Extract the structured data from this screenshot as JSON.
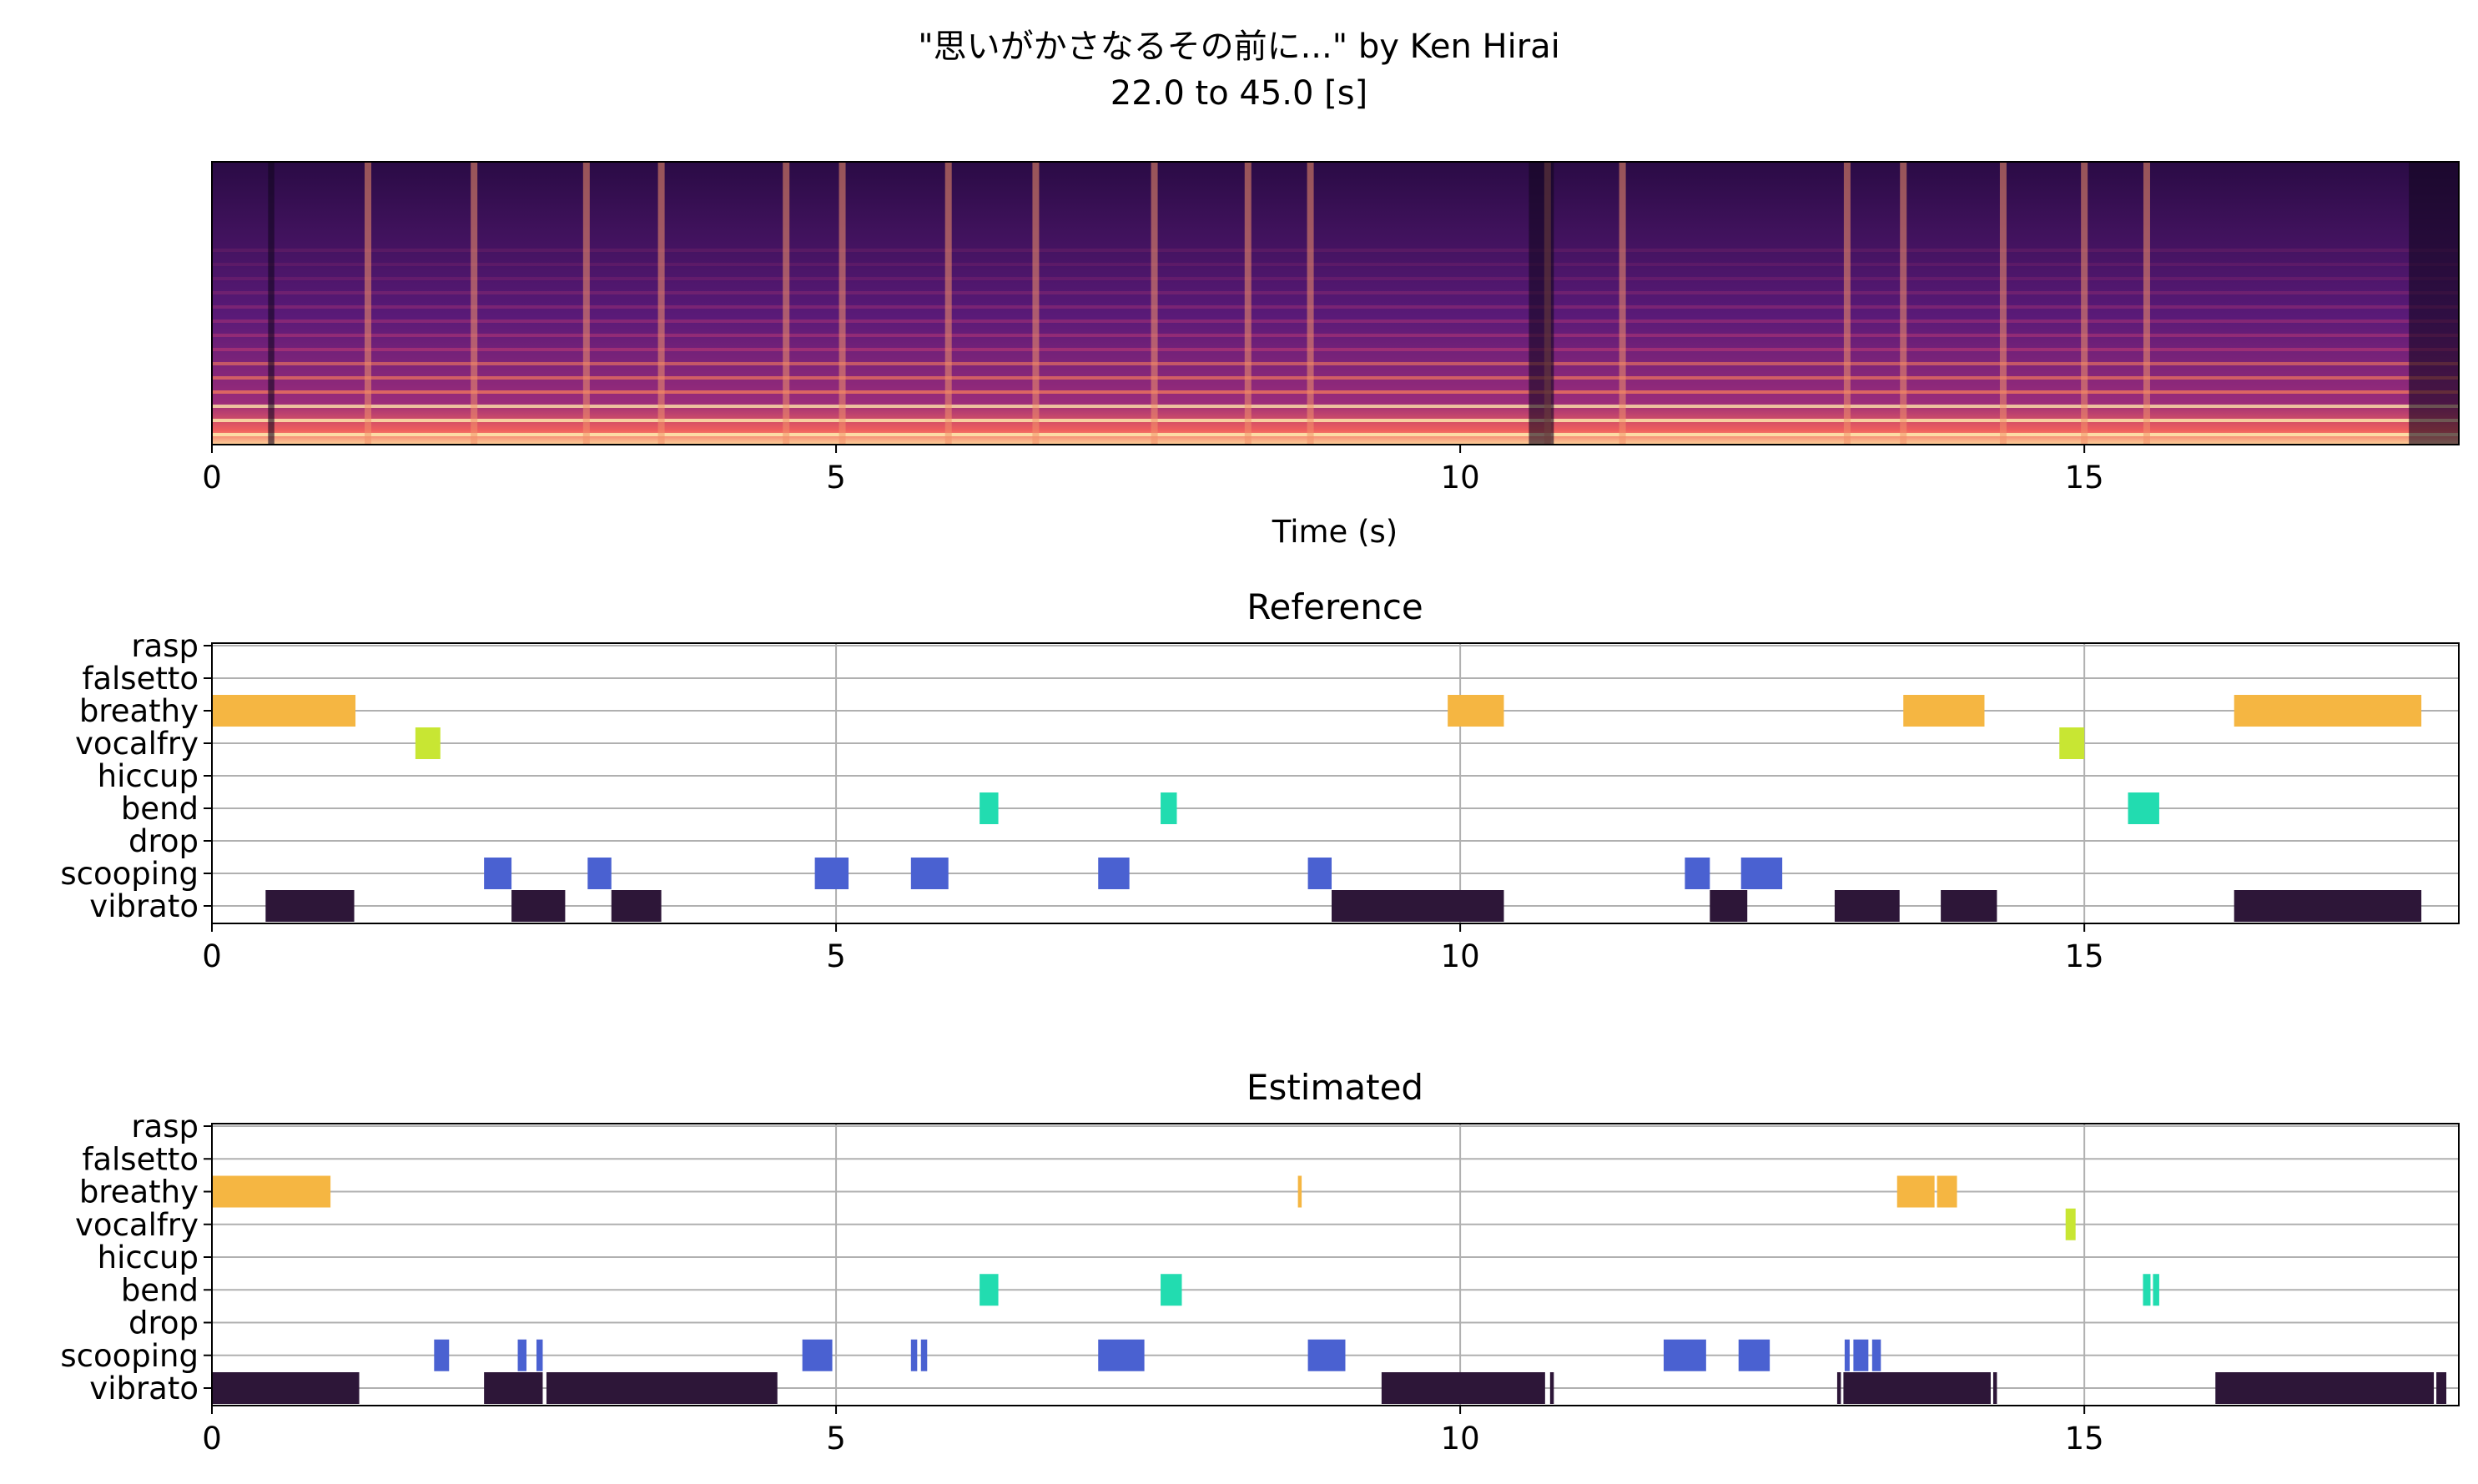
{
  "figure": {
    "title": "\"思いがかさなるその前に...\" by Ken Hirai",
    "subtitle": "22.0 to 45.0 [s]"
  },
  "chart_data": [
    {
      "type": "heatmap",
      "name": "spectrogram",
      "xlabel": "Time (s)",
      "xlim": [
        0,
        18
      ],
      "xticks": [
        "0",
        "5",
        "10",
        "15"
      ],
      "ylabel": "",
      "colormap": "magma",
      "note_free": true,
      "vertical_boundaries": [
        1.25,
        2.1,
        3.0,
        3.6,
        4.6,
        5.05,
        5.9,
        6.6,
        7.55,
        8.3,
        8.8,
        10.7,
        11.3,
        13.1,
        13.55,
        14.35,
        15.0,
        15.5
      ]
    },
    {
      "type": "bar",
      "title": "Reference",
      "xlim": [
        0,
        18
      ],
      "xticks": [
        "0",
        "5",
        "10",
        "15"
      ],
      "categories": [
        "rasp",
        "falsetto",
        "breathy",
        "vocalfry",
        "hiccup",
        "bend",
        "drop",
        "scooping",
        "vibrato"
      ],
      "colors": {
        "breathy": "#f5b642",
        "vocalfry": "#c8e633",
        "bend": "#22dcb0",
        "scooping": "#4a61d1",
        "vibrato": "#2d1638"
      },
      "segments": {
        "rasp": [],
        "falsetto": [],
        "breathy": [
          [
            0.0,
            1.15
          ],
          [
            9.9,
            10.35
          ],
          [
            13.55,
            14.2
          ],
          [
            16.2,
            17.7
          ]
        ],
        "vocalfry": [
          [
            1.63,
            1.83
          ],
          [
            14.8,
            15.0
          ]
        ],
        "hiccup": [],
        "bend": [
          [
            6.15,
            6.3
          ],
          [
            7.6,
            7.73
          ],
          [
            15.35,
            15.6
          ]
        ],
        "drop": [],
        "scooping": [
          [
            2.18,
            2.4
          ],
          [
            3.01,
            3.2
          ],
          [
            4.83,
            5.1
          ],
          [
            5.6,
            5.9
          ],
          [
            7.1,
            7.35
          ],
          [
            8.78,
            8.97
          ],
          [
            11.8,
            12.0
          ],
          [
            12.25,
            12.58
          ]
        ],
        "vibrato": [
          [
            0.43,
            1.14
          ],
          [
            2.4,
            2.83
          ],
          [
            3.2,
            3.6
          ],
          [
            8.97,
            10.35
          ],
          [
            12.0,
            12.3
          ],
          [
            13.0,
            13.52
          ],
          [
            13.85,
            14.3
          ],
          [
            16.2,
            17.7
          ]
        ]
      }
    },
    {
      "type": "bar",
      "title": "Estimated",
      "xlim": [
        0,
        18
      ],
      "xticks": [
        "0",
        "5",
        "10",
        "15"
      ],
      "categories": [
        "rasp",
        "falsetto",
        "breathy",
        "vocalfry",
        "hiccup",
        "bend",
        "drop",
        "scooping",
        "vibrato"
      ],
      "colors": {
        "breathy": "#f5b642",
        "vocalfry": "#c8e633",
        "bend": "#22dcb0",
        "scooping": "#4a61d1",
        "vibrato": "#2d1638"
      },
      "segments": {
        "rasp": [],
        "falsetto": [],
        "breathy": [
          [
            0.0,
            0.95
          ],
          [
            8.7,
            8.73
          ],
          [
            13.5,
            13.8
          ],
          [
            13.82,
            13.98
          ]
        ],
        "vocalfry": [
          [
            14.85,
            14.93
          ]
        ],
        "hiccup": [],
        "bend": [
          [
            6.15,
            6.3
          ],
          [
            7.6,
            7.77
          ],
          [
            15.47,
            15.53
          ],
          [
            15.55,
            15.6
          ]
        ],
        "drop": [],
        "scooping": [
          [
            1.78,
            1.9
          ],
          [
            2.45,
            2.52
          ],
          [
            2.6,
            2.65
          ],
          [
            4.73,
            4.97
          ],
          [
            5.6,
            5.65
          ],
          [
            5.68,
            5.73
          ],
          [
            7.1,
            7.47
          ],
          [
            8.78,
            9.08
          ],
          [
            11.63,
            11.97
          ],
          [
            12.23,
            12.48
          ],
          [
            13.08,
            13.12
          ],
          [
            13.15,
            13.27
          ],
          [
            13.3,
            13.37
          ]
        ],
        "vibrato": [
          [
            0.0,
            1.18
          ],
          [
            2.18,
            2.65
          ],
          [
            2.68,
            4.53
          ],
          [
            9.37,
            10.68
          ],
          [
            10.72,
            10.75
          ],
          [
            13.02,
            13.05
          ],
          [
            13.07,
            14.25
          ],
          [
            14.27,
            14.3
          ],
          [
            16.05,
            17.8
          ],
          [
            17.82,
            17.9
          ]
        ]
      }
    }
  ]
}
